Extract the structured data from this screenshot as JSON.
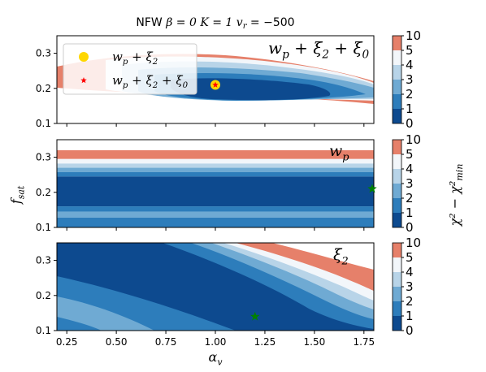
{
  "figure": {
    "title": "NFW   β = 0   K = 1   v_r = −500",
    "title_parts": [
      "NFW",
      "β = 0",
      "K = 1",
      "v",
      "r",
      " = −500"
    ],
    "xlabel": "α",
    "xlabel_sub": "v",
    "ylabel": "f",
    "ylabel_sub": "sat",
    "colorbar_label": "χ² − χ²",
    "colorbar_label_sub": "min"
  },
  "chart_data": [
    {
      "type": "contour",
      "panel_label": "w_p + ξ_2 + ξ_0",
      "panel_label_parts": [
        "w",
        "p",
        " + ξ",
        "2",
        " + ξ",
        "0"
      ],
      "x_range": [
        0.2,
        1.8
      ],
      "y_range": [
        0.1,
        0.35
      ],
      "xticks": [
        0.25,
        0.5,
        0.75,
        1.0,
        1.25,
        1.5,
        1.75
      ],
      "yticks": [
        0.1,
        0.2,
        0.3
      ],
      "ytick_labels": [
        "0.1",
        "0.2",
        "0.3"
      ],
      "legend": {
        "placement": "upper-left",
        "entries": [
          {
            "label": "w_p + ξ_2",
            "label_parts": [
              "w",
              "p",
              " + ξ",
              "2"
            ],
            "marker": "circle",
            "color": "#ffd700"
          },
          {
            "label": "w_p + ξ_2 + ξ_0",
            "label_parts": [
              "w",
              "p",
              " + ξ",
              "2",
              " + ξ",
              "0"
            ],
            "marker": "star",
            "color": "#ff0000"
          }
        ]
      },
      "markers": [
        {
          "x": 1.0,
          "y": 0.21,
          "shape": "circle",
          "color": "#ffd700"
        },
        {
          "x": 1.0,
          "y": 0.21,
          "shape": "star",
          "color": "#ff0000"
        }
      ]
    },
    {
      "type": "contour",
      "panel_label": "w_p",
      "panel_label_parts": [
        "w",
        "p"
      ],
      "x_range": [
        0.2,
        1.8
      ],
      "y_range": [
        0.1,
        0.35
      ],
      "xticks": [
        0.25,
        0.5,
        0.75,
        1.0,
        1.25,
        1.5,
        1.75
      ],
      "yticks": [
        0.1,
        0.2,
        0.3
      ],
      "ytick_labels": [
        "0.1",
        "0.2",
        "0.3"
      ],
      "markers": [
        {
          "x": 1.8,
          "y": 0.21,
          "shape": "star",
          "color": "#008000"
        }
      ]
    },
    {
      "type": "contour",
      "panel_label": "ξ_2",
      "panel_label_parts": [
        "ξ",
        "2"
      ],
      "x_range": [
        0.2,
        1.8
      ],
      "y_range": [
        0.1,
        0.35
      ],
      "xticks": [
        0.25,
        0.5,
        0.75,
        1.0,
        1.25,
        1.5,
        1.75
      ],
      "xtick_labels": [
        "0.25",
        "0.50",
        "0.75",
        "1.00",
        "1.25",
        "1.50",
        "1.75"
      ],
      "yticks": [
        0.1,
        0.2,
        0.3
      ],
      "ytick_labels": [
        "0.1",
        "0.2",
        "0.3"
      ],
      "markers": [
        {
          "x": 1.2,
          "y": 0.14,
          "shape": "star",
          "color": "#008000"
        }
      ]
    }
  ],
  "colorbar": {
    "levels": [
      0,
      1,
      2,
      3,
      4,
      5,
      10
    ],
    "tick_labels": [
      "0",
      "1",
      "2",
      "3",
      "4",
      "5",
      "10"
    ],
    "colors": [
      "#0d4a8f",
      "#2d7dbb",
      "#6faad3",
      "#b8d4e8",
      "#f2f6fa",
      "#e6806a"
    ]
  }
}
